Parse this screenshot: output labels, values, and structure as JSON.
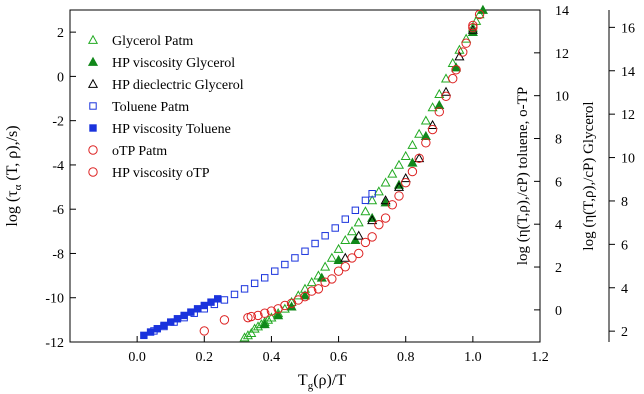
{
  "chart_data": {
    "type": "scatter",
    "xlabel_main": "T",
    "xlabel_sub": "g",
    "xlabel_rest": "(ρ)/T",
    "ylabel_left": "log (τ",
    "ylabel_left_sub": "α",
    "ylabel_left_rest": " (T, ρ),/s)",
    "ylabel_right1": "log (η(T,ρ),/cP) toluene, o-TP",
    "ylabel_right2": "log (η(T,ρ),/cP) Glycerol",
    "xlim": [
      -0.2,
      1.2
    ],
    "ylim_left": [
      -12,
      3
    ],
    "ylim_right1": [
      -1.5,
      14
    ],
    "ylim_right2": [
      1.5,
      16.8
    ],
    "x_ticks": [
      "0.0",
      "0.2",
      "0.4",
      "0.6",
      "0.8",
      "1.0",
      "1.2"
    ],
    "y_left_ticks": [
      "-12",
      "-10",
      "-8",
      "-6",
      "-4",
      "-2",
      "0",
      "2"
    ],
    "y_right1_ticks": [
      "0",
      "2",
      "4",
      "6",
      "8",
      "10",
      "12",
      "14"
    ],
    "y_right2_ticks": [
      "2",
      "4",
      "6",
      "8",
      "10",
      "12",
      "14",
      "16"
    ],
    "legend_position": "top-left",
    "series": [
      {
        "name": "Glycerol Patm",
        "marker": "triangle-open",
        "color": "#22aa22",
        "x": [
          0.32,
          0.33,
          0.34,
          0.35,
          0.36,
          0.37,
          0.38,
          0.39,
          0.4,
          0.42,
          0.44,
          0.46,
          0.48,
          0.5,
          0.52,
          0.54,
          0.56,
          0.58,
          0.6,
          0.62,
          0.64,
          0.66,
          0.68,
          0.7,
          0.72,
          0.74,
          0.76,
          0.78,
          0.8,
          0.82,
          0.84,
          0.86,
          0.88,
          0.9,
          0.92,
          0.94,
          0.96,
          0.98,
          1.0,
          1.01,
          1.02
        ],
        "y": [
          -11.8,
          -11.7,
          -11.6,
          -11.4,
          -11.3,
          -11.2,
          -11.1,
          -11.0,
          -10.9,
          -10.7,
          -10.5,
          -10.2,
          -9.9,
          -9.6,
          -9.3,
          -9.0,
          -8.6,
          -8.2,
          -7.8,
          -7.4,
          -7.0,
          -6.6,
          -6.1,
          -5.6,
          -5.2,
          -4.8,
          -4.4,
          -4.0,
          -3.6,
          -3.1,
          -2.6,
          -2.0,
          -1.4,
          -0.8,
          -0.1,
          0.6,
          1.2,
          1.7,
          2.2,
          2.5,
          2.8
        ]
      },
      {
        "name": "HP viscosity Glycerol",
        "marker": "triangle-filled",
        "color": "#11881a",
        "x": [
          0.38,
          0.42,
          0.46,
          0.5,
          0.55,
          0.6,
          0.65,
          0.7,
          0.74,
          0.78,
          0.82,
          0.86,
          0.9,
          0.95,
          1.0,
          1.03
        ],
        "y": [
          -11.2,
          -10.8,
          -10.4,
          -9.9,
          -9.1,
          -8.3,
          -7.4,
          -6.4,
          -5.7,
          -4.9,
          -3.9,
          -2.7,
          -1.3,
          0.4,
          2.0,
          3.0
        ]
      },
      {
        "name": "HP dieclectric Glycerol",
        "marker": "triangle-open",
        "color": "#000000",
        "x": [
          0.62,
          0.66,
          0.7,
          0.74,
          0.78,
          0.8,
          0.84,
          0.88,
          0.92,
          0.96,
          1.0
        ],
        "y": [
          -8.2,
          -7.2,
          -6.5,
          -5.6,
          -5.0,
          -4.6,
          -3.7,
          -2.2,
          -0.7,
          0.9,
          2.1
        ]
      },
      {
        "name": "Toluene Patm",
        "marker": "square-open",
        "color": "#1a33dd",
        "x": [
          0.05,
          0.08,
          0.11,
          0.14,
          0.17,
          0.2,
          0.23,
          0.26,
          0.29,
          0.32,
          0.35,
          0.38,
          0.41,
          0.44,
          0.47,
          0.5,
          0.53,
          0.56,
          0.59,
          0.62,
          0.65,
          0.68,
          0.7
        ],
        "y": [
          -11.5,
          -11.3,
          -11.1,
          -10.9,
          -10.7,
          -10.5,
          -10.3,
          -10.1,
          -9.85,
          -9.6,
          -9.35,
          -9.1,
          -8.8,
          -8.5,
          -8.2,
          -7.9,
          -7.55,
          -7.2,
          -6.85,
          -6.45,
          -6.05,
          -5.6,
          -5.3
        ]
      },
      {
        "name": "HP viscosity Toluene",
        "marker": "square-filled",
        "color": "#1a33dd",
        "x": [
          0.02,
          0.04,
          0.06,
          0.08,
          0.1,
          0.12,
          0.14,
          0.16,
          0.18,
          0.2,
          0.22,
          0.24
        ],
        "y": [
          -11.7,
          -11.55,
          -11.4,
          -11.25,
          -11.1,
          -10.95,
          -10.8,
          -10.65,
          -10.5,
          -10.35,
          -10.2,
          -10.05
        ]
      },
      {
        "name": "oTP Patm",
        "marker": "circle-open",
        "color": "#dd2222",
        "x": [
          0.2,
          0.26,
          0.33,
          0.36,
          0.4,
          0.44,
          0.48,
          0.52,
          0.56,
          0.6,
          0.64,
          0.68,
          0.72,
          0.76,
          0.8,
          0.84,
          0.88,
          0.92,
          0.95,
          0.98,
          1.0,
          1.02
        ],
        "y": [
          -11.5,
          -11.0,
          -10.9,
          -10.8,
          -10.6,
          -10.35,
          -10.1,
          -9.7,
          -9.3,
          -8.8,
          -8.2,
          -7.5,
          -6.7,
          -5.8,
          -4.8,
          -3.7,
          -2.4,
          -0.9,
          0.3,
          1.5,
          2.2,
          2.8
        ]
      },
      {
        "name": "HP viscosity oTP",
        "marker": "circle-open",
        "color": "#dd2222",
        "x": [
          0.34,
          0.38,
          0.42,
          0.46,
          0.5,
          0.54,
          0.58,
          0.62,
          0.66,
          0.7,
          0.74,
          0.78,
          0.82,
          0.86,
          0.9,
          0.94,
          0.97,
          1.0
        ],
        "y": [
          -10.85,
          -10.7,
          -10.5,
          -10.25,
          -9.95,
          -9.6,
          -9.15,
          -8.6,
          -8.0,
          -7.25,
          -6.4,
          -5.4,
          -4.3,
          -3.0,
          -1.6,
          -0.1,
          1.1,
          2.3
        ]
      }
    ]
  }
}
